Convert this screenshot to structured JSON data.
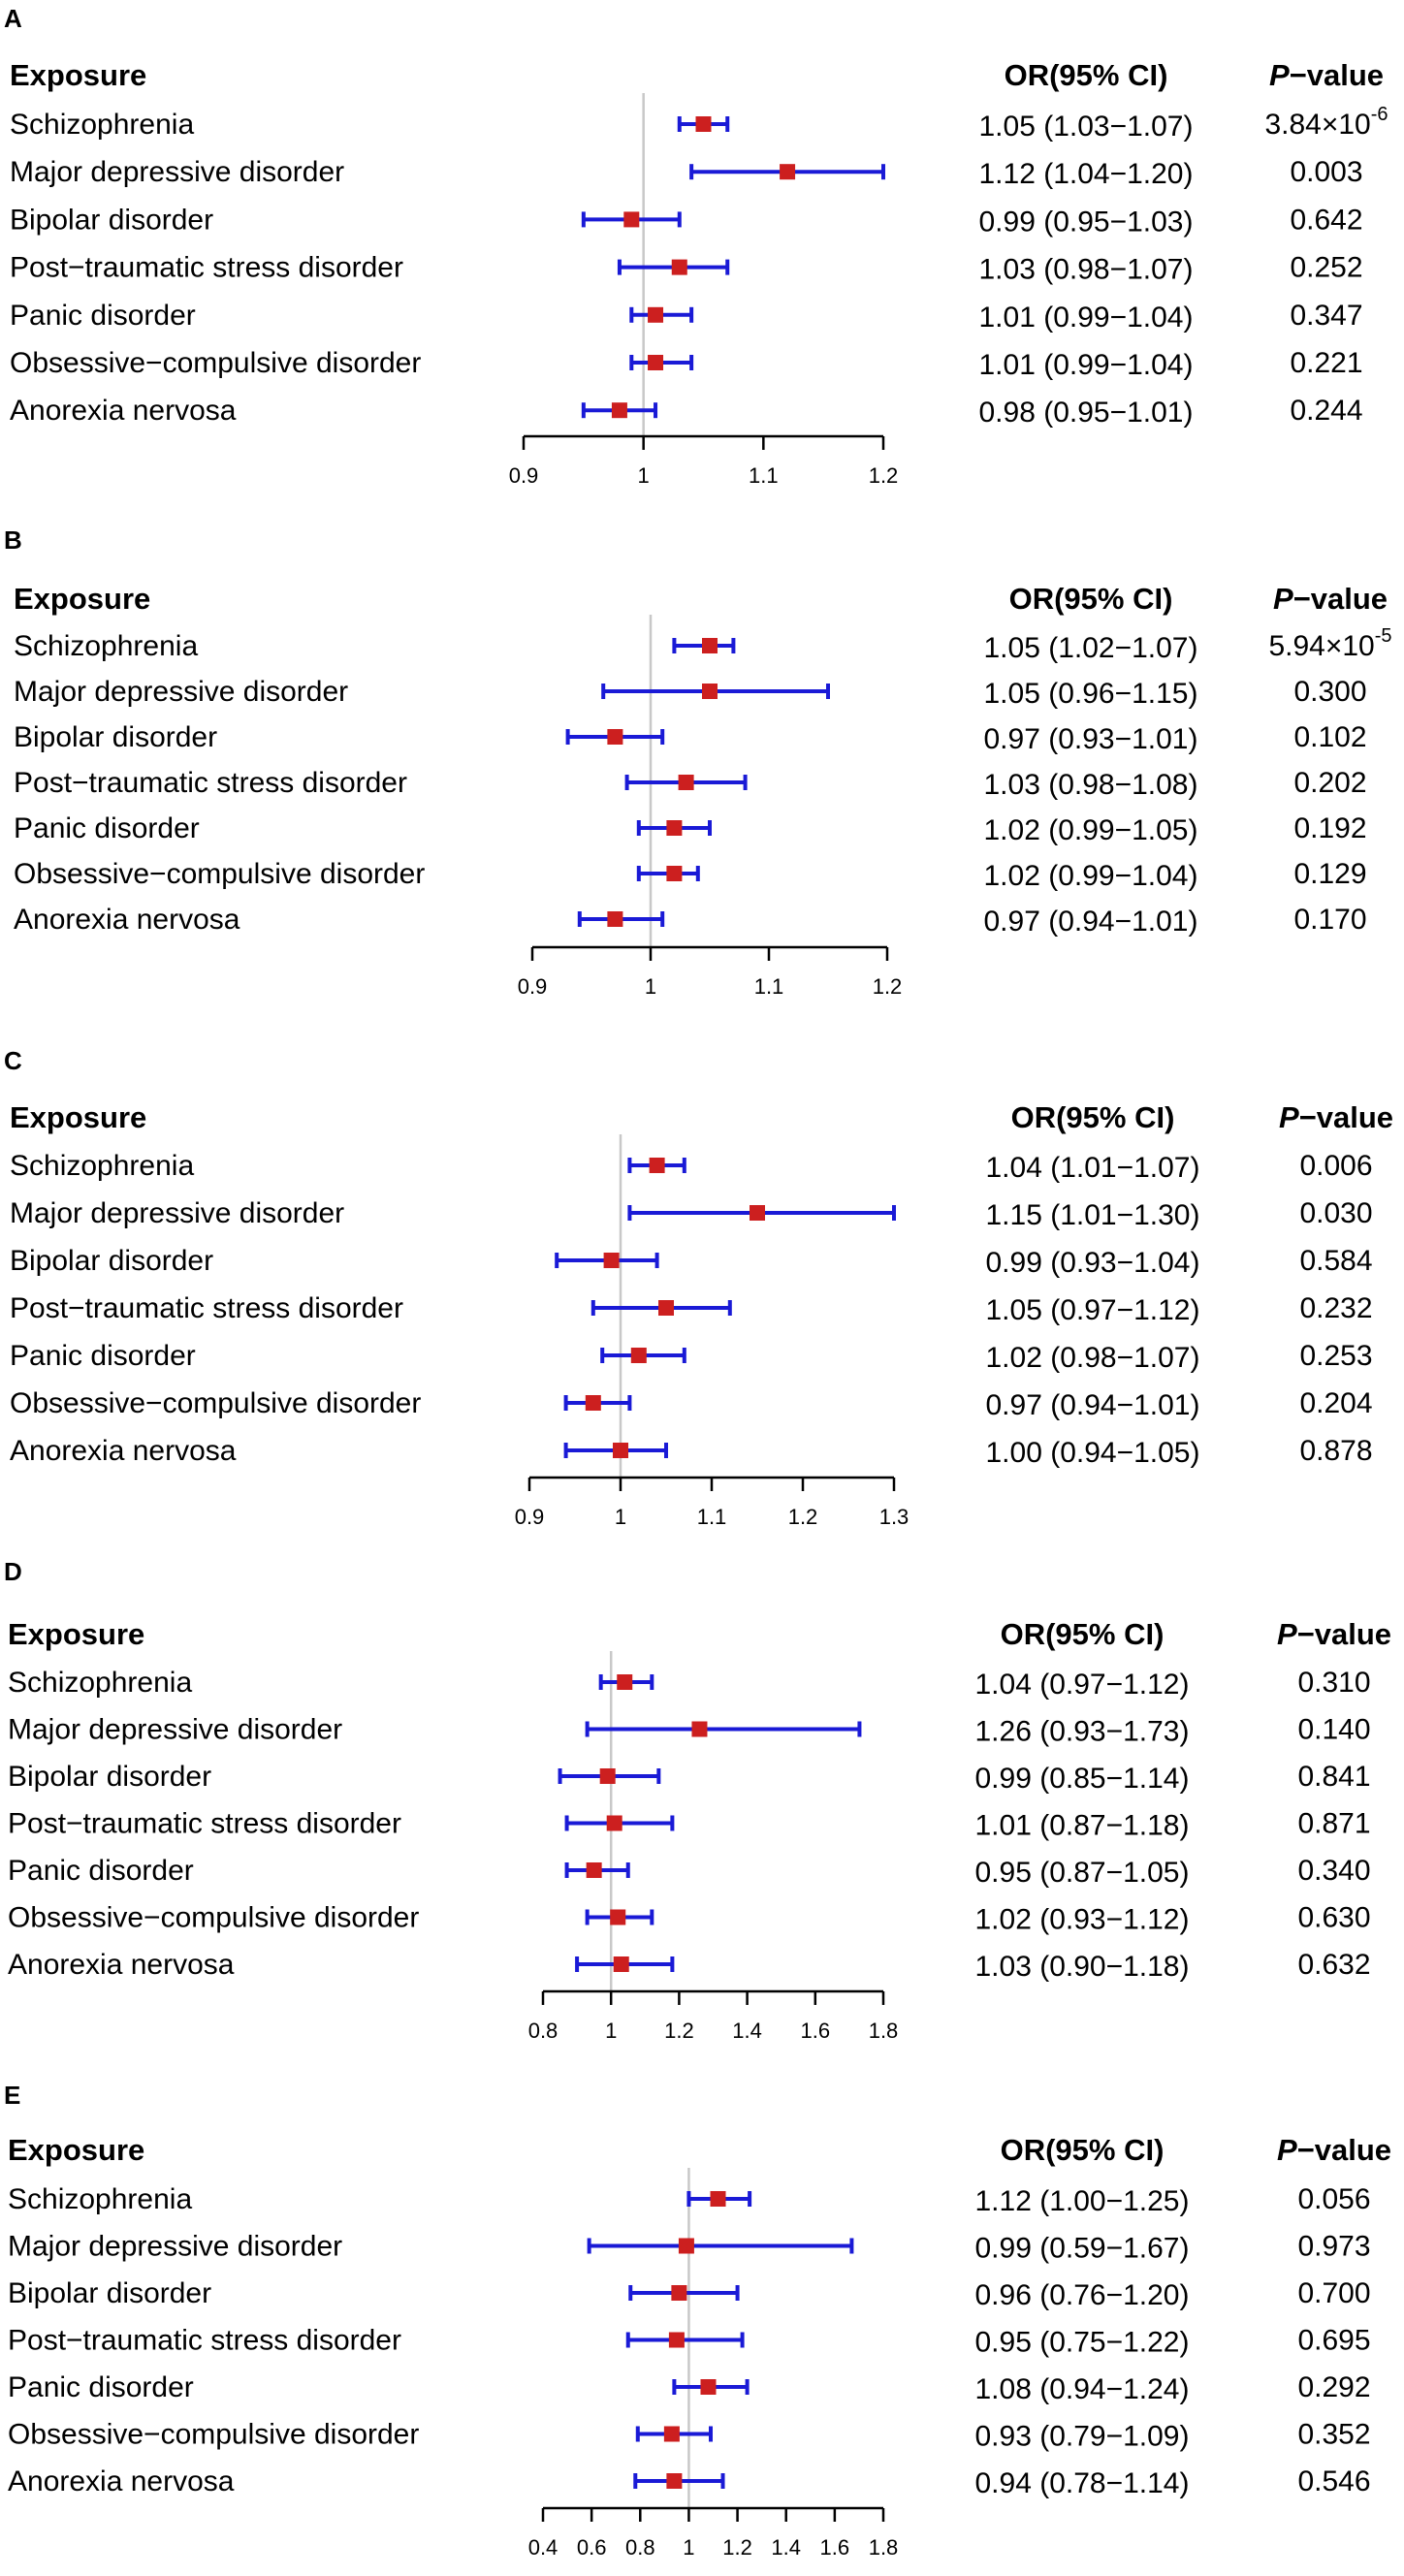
{
  "chart_data": [
    {
      "type": "forest",
      "panel": "A",
      "headers": {
        "exposure": "Exposure",
        "or": "OR(95% CI)",
        "p_italic": "P",
        "p_rest": "−value"
      },
      "xlim": [
        0.9,
        1.2
      ],
      "ticks": [
        0.9,
        1,
        1.1,
        1.2
      ],
      "tick_labels": [
        "0.9",
        "1",
        "1.1",
        "1.2"
      ],
      "rows": [
        {
          "exposure": "Schizophrenia",
          "or": 1.05,
          "lo": 1.03,
          "hi": 1.07,
          "or_text": "1.05 (1.03−1.07)",
          "p_text": "3.84×10",
          "p_exp": "-6"
        },
        {
          "exposure": "Major depressive disorder",
          "or": 1.12,
          "lo": 1.04,
          "hi": 1.2,
          "or_text": "1.12 (1.04−1.20)",
          "p_text": "0.003"
        },
        {
          "exposure": "Bipolar disorder",
          "or": 0.99,
          "lo": 0.95,
          "hi": 1.03,
          "or_text": "0.99 (0.95−1.03)",
          "p_text": "0.642"
        },
        {
          "exposure": "Post−traumatic stress disorder",
          "or": 1.03,
          "lo": 0.98,
          "hi": 1.07,
          "or_text": "1.03 (0.98−1.07)",
          "p_text": "0.252"
        },
        {
          "exposure": "Panic disorder",
          "or": 1.01,
          "lo": 0.99,
          "hi": 1.04,
          "or_text": "1.01 (0.99−1.04)",
          "p_text": "0.347"
        },
        {
          "exposure": "Obsessive−compulsive disorder",
          "or": 1.01,
          "lo": 0.99,
          "hi": 1.04,
          "or_text": "1.01 (0.99−1.04)",
          "p_text": "0.221"
        },
        {
          "exposure": "Anorexia nervosa",
          "or": 0.98,
          "lo": 0.95,
          "hi": 1.01,
          "or_text": "0.98 (0.95−1.01)",
          "p_text": "0.244"
        }
      ]
    },
    {
      "type": "forest",
      "panel": "B",
      "headers": {
        "exposure": "Exposure",
        "or": "OR(95% CI)",
        "p_italic": "P",
        "p_rest": "−value"
      },
      "xlim": [
        0.9,
        1.2
      ],
      "ticks": [
        0.9,
        1,
        1.1,
        1.2
      ],
      "tick_labels": [
        "0.9",
        "1",
        "1.1",
        "1.2"
      ],
      "rows": [
        {
          "exposure": "Schizophrenia",
          "or": 1.05,
          "lo": 1.02,
          "hi": 1.07,
          "or_text": "1.05 (1.02−1.07)",
          "p_text": "5.94×10",
          "p_exp": "-5"
        },
        {
          "exposure": "Major depressive disorder",
          "or": 1.05,
          "lo": 0.96,
          "hi": 1.15,
          "or_text": "1.05 (0.96−1.15)",
          "p_text": "0.300"
        },
        {
          "exposure": "Bipolar disorder",
          "or": 0.97,
          "lo": 0.93,
          "hi": 1.01,
          "or_text": "0.97 (0.93−1.01)",
          "p_text": "0.102"
        },
        {
          "exposure": "Post−traumatic stress disorder",
          "or": 1.03,
          "lo": 0.98,
          "hi": 1.08,
          "or_text": "1.03 (0.98−1.08)",
          "p_text": "0.202"
        },
        {
          "exposure": "Panic disorder",
          "or": 1.02,
          "lo": 0.99,
          "hi": 1.05,
          "or_text": "1.02 (0.99−1.05)",
          "p_text": "0.192"
        },
        {
          "exposure": "Obsessive−compulsive disorder",
          "or": 1.02,
          "lo": 0.99,
          "hi": 1.04,
          "or_text": "1.02 (0.99−1.04)",
          "p_text": "0.129"
        },
        {
          "exposure": "Anorexia nervosa",
          "or": 0.97,
          "lo": 0.94,
          "hi": 1.01,
          "or_text": "0.97 (0.94−1.01)",
          "p_text": "0.170"
        }
      ]
    },
    {
      "type": "forest",
      "panel": "C",
      "headers": {
        "exposure": "Exposure",
        "or": "OR(95% CI)",
        "p_italic": "P",
        "p_rest": "−value"
      },
      "xlim": [
        0.9,
        1.3
      ],
      "ticks": [
        0.9,
        1,
        1.1,
        1.2,
        1.3
      ],
      "tick_labels": [
        "0.9",
        "1",
        "1.1",
        "1.2",
        "1.3"
      ],
      "rows": [
        {
          "exposure": "Schizophrenia",
          "or": 1.04,
          "lo": 1.01,
          "hi": 1.07,
          "or_text": "1.04 (1.01−1.07)",
          "p_text": "0.006"
        },
        {
          "exposure": "Major depressive disorder",
          "or": 1.15,
          "lo": 1.01,
          "hi": 1.3,
          "or_text": "1.15 (1.01−1.30)",
          "p_text": "0.030"
        },
        {
          "exposure": "Bipolar disorder",
          "or": 0.99,
          "lo": 0.93,
          "hi": 1.04,
          "or_text": "0.99 (0.93−1.04)",
          "p_text": "0.584"
        },
        {
          "exposure": "Post−traumatic stress disorder",
          "or": 1.05,
          "lo": 0.97,
          "hi": 1.12,
          "or_text": "1.05 (0.97−1.12)",
          "p_text": "0.232"
        },
        {
          "exposure": "Panic disorder",
          "or": 1.02,
          "lo": 0.98,
          "hi": 1.07,
          "or_text": "1.02 (0.98−1.07)",
          "p_text": "0.253"
        },
        {
          "exposure": "Obsessive−compulsive disorder",
          "or": 0.97,
          "lo": 0.94,
          "hi": 1.01,
          "or_text": "0.97 (0.94−1.01)",
          "p_text": "0.204"
        },
        {
          "exposure": "Anorexia nervosa",
          "or": 1.0,
          "lo": 0.94,
          "hi": 1.05,
          "or_text": "1.00 (0.94−1.05)",
          "p_text": "0.878"
        }
      ]
    },
    {
      "type": "forest",
      "panel": "D",
      "headers": {
        "exposure": "Exposure",
        "or": "OR(95% CI)",
        "p_italic": "P",
        "p_rest": "−value"
      },
      "xlim": [
        0.8,
        1.8
      ],
      "ticks": [
        0.8,
        1,
        1.2,
        1.4,
        1.6,
        1.8
      ],
      "tick_labels": [
        "0.8",
        "1",
        "1.2",
        "1.4",
        "1.6",
        "1.8"
      ],
      "rows": [
        {
          "exposure": "Schizophrenia",
          "or": 1.04,
          "lo": 0.97,
          "hi": 1.12,
          "or_text": "1.04 (0.97−1.12)",
          "p_text": "0.310"
        },
        {
          "exposure": "Major depressive disorder",
          "or": 1.26,
          "lo": 0.93,
          "hi": 1.73,
          "or_text": "1.26 (0.93−1.73)",
          "p_text": "0.140"
        },
        {
          "exposure": "Bipolar disorder",
          "or": 0.99,
          "lo": 0.85,
          "hi": 1.14,
          "or_text": "0.99 (0.85−1.14)",
          "p_text": "0.841"
        },
        {
          "exposure": "Post−traumatic stress disorder",
          "or": 1.01,
          "lo": 0.87,
          "hi": 1.18,
          "or_text": "1.01 (0.87−1.18)",
          "p_text": "0.871"
        },
        {
          "exposure": "Panic disorder",
          "or": 0.95,
          "lo": 0.87,
          "hi": 1.05,
          "or_text": "0.95 (0.87−1.05)",
          "p_text": "0.340"
        },
        {
          "exposure": "Obsessive−compulsive disorder",
          "or": 1.02,
          "lo": 0.93,
          "hi": 1.12,
          "or_text": "1.02 (0.93−1.12)",
          "p_text": "0.630"
        },
        {
          "exposure": "Anorexia nervosa",
          "or": 1.03,
          "lo": 0.9,
          "hi": 1.18,
          "or_text": "1.03 (0.90−1.18)",
          "p_text": "0.632"
        }
      ]
    },
    {
      "type": "forest",
      "panel": "E",
      "headers": {
        "exposure": "Exposure",
        "or": "OR(95% CI)",
        "p_italic": "P",
        "p_rest": "−value"
      },
      "xlim": [
        0.4,
        1.8
      ],
      "ticks": [
        0.4,
        0.6,
        0.8,
        1,
        1.2,
        1.4,
        1.6,
        1.8
      ],
      "tick_labels": [
        "0.4",
        "0.6",
        "0.8",
        "1",
        "1.2",
        "1.4",
        "1.6",
        "1.8"
      ],
      "rows": [
        {
          "exposure": "Schizophrenia",
          "or": 1.12,
          "lo": 1.0,
          "hi": 1.25,
          "or_text": "1.12 (1.00−1.25)",
          "p_text": "0.056"
        },
        {
          "exposure": "Major depressive disorder",
          "or": 0.99,
          "lo": 0.59,
          "hi": 1.67,
          "or_text": "0.99 (0.59−1.67)",
          "p_text": "0.973"
        },
        {
          "exposure": "Bipolar disorder",
          "or": 0.96,
          "lo": 0.76,
          "hi": 1.2,
          "or_text": "0.96 (0.76−1.20)",
          "p_text": "0.700"
        },
        {
          "exposure": "Post−traumatic stress disorder",
          "or": 0.95,
          "lo": 0.75,
          "hi": 1.22,
          "or_text": "0.95 (0.75−1.22)",
          "p_text": "0.695"
        },
        {
          "exposure": "Panic disorder",
          "or": 1.08,
          "lo": 0.94,
          "hi": 1.24,
          "or_text": "1.08 (0.94−1.24)",
          "p_text": "0.292"
        },
        {
          "exposure": "Obsessive−compulsive disorder",
          "or": 0.93,
          "lo": 0.79,
          "hi": 1.09,
          "or_text": "0.93 (0.79−1.09)",
          "p_text": "0.352"
        },
        {
          "exposure": "Anorexia nervosa",
          "or": 0.94,
          "lo": 0.78,
          "hi": 1.14,
          "or_text": "0.94 (0.78−1.14)",
          "p_text": "0.546"
        }
      ]
    }
  ],
  "colors": {
    "ci_line": "#1a1ad6",
    "point": "#cc1f1f",
    "ref_line": "#c8c8c8",
    "axis": "#000000"
  }
}
